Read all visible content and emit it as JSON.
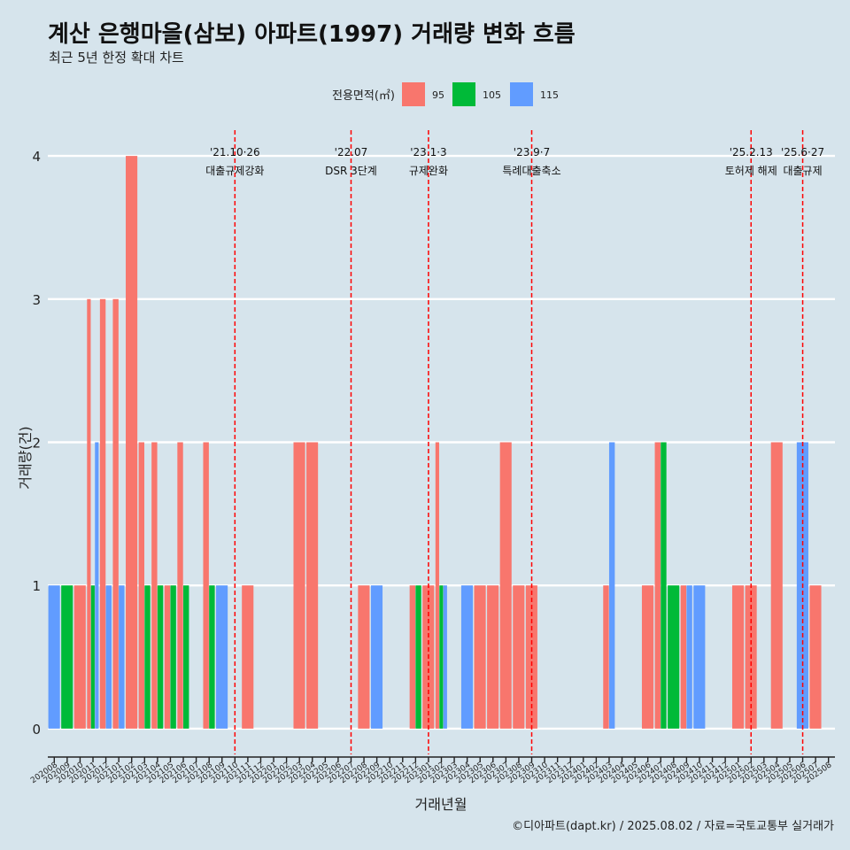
{
  "chart_data": {
    "type": "bar",
    "title": "계산 은행마을(삼보) 아파트(1997) 거래량 변화 흐름",
    "subtitle": "최근 5년 한정 확대 차트",
    "xlabel": "거래년월",
    "ylabel": "거래량(건)",
    "ylim": [
      -0.18,
      4.18
    ],
    "yticks": [
      0,
      1,
      2,
      3,
      4
    ],
    "legend": {
      "title": "전용면적(㎡)",
      "position": "top",
      "entries": [
        {
          "name": "95",
          "color": "#f8766d"
        },
        {
          "name": "105",
          "color": "#00ba38"
        },
        {
          "name": "115",
          "color": "#619cff"
        }
      ]
    },
    "caption": "©디아파트(dapt.kr) / 2025.08.02 / 자료=국토교통부 실거래가",
    "categories": [
      "202008",
      "202009",
      "202010",
      "202011",
      "202012",
      "202101",
      "202102",
      "202103",
      "202104",
      "202105",
      "202106",
      "202107",
      "202108",
      "202109",
      "202110",
      "202111",
      "202112",
      "202201",
      "202202",
      "202203",
      "202204",
      "202205",
      "202206",
      "202207",
      "202208",
      "202209",
      "202210",
      "202211",
      "202212",
      "202301",
      "202302",
      "202303",
      "202304",
      "202305",
      "202306",
      "202307",
      "202308",
      "202309",
      "202310",
      "202311",
      "202312",
      "202401",
      "202402",
      "202403",
      "202404",
      "202405",
      "202406",
      "202407",
      "202408",
      "202409",
      "202410",
      "202411",
      "202412",
      "202501",
      "202502",
      "202503",
      "202504",
      "202505",
      "202506",
      "202507",
      "202508"
    ],
    "series": [
      {
        "name": "95",
        "color": "#f8766d",
        "values": [
          0,
          0,
          1,
          3,
          3,
          3,
          4,
          2,
          2,
          1,
          2,
          0,
          2,
          0,
          0,
          1,
          0,
          0,
          0,
          2,
          2,
          0,
          0,
          0,
          1,
          0,
          0,
          0,
          1,
          1,
          2,
          0,
          0,
          1,
          1,
          2,
          1,
          1,
          0,
          0,
          0,
          0,
          0,
          1,
          0,
          0,
          1,
          2,
          0,
          1,
          0,
          0,
          0,
          1,
          1,
          0,
          2,
          0,
          0,
          1,
          0
        ]
      },
      {
        "name": "105",
        "color": "#00ba38",
        "values": [
          0,
          1,
          0,
          1,
          0,
          0,
          0,
          1,
          1,
          1,
          1,
          0,
          1,
          0,
          0,
          0,
          0,
          0,
          0,
          0,
          0,
          0,
          0,
          0,
          0,
          0,
          0,
          0,
          1,
          0,
          1,
          0,
          0,
          0,
          0,
          0,
          0,
          0,
          0,
          0,
          0,
          0,
          0,
          0,
          0,
          0,
          0,
          2,
          1,
          0,
          0,
          0,
          0,
          0,
          0,
          0,
          0,
          0,
          0,
          0,
          0
        ]
      },
      {
        "name": "115",
        "color": "#619cff",
        "values": [
          1,
          0,
          0,
          2,
          1,
          1,
          0,
          0,
          0,
          0,
          0,
          0,
          0,
          1,
          0,
          0,
          0,
          0,
          0,
          0,
          0,
          0,
          0,
          0,
          0,
          1,
          0,
          0,
          0,
          0,
          1,
          0,
          1,
          0,
          0,
          0,
          0,
          0,
          0,
          0,
          0,
          0,
          0,
          2,
          0,
          0,
          0,
          0,
          0,
          1,
          1,
          0,
          0,
          0,
          0,
          0,
          0,
          0,
          2,
          0,
          0
        ]
      }
    ],
    "annotations": [
      {
        "x": "202110",
        "date": "'21.10·26",
        "label": "대출규제강화"
      },
      {
        "x": "202207",
        "date": "'22.07",
        "label": "DSR 3단계"
      },
      {
        "x": "202301",
        "date": "'23.1·3",
        "label": "규제완화"
      },
      {
        "x": "202309",
        "date": "'23.9·7",
        "label": "특례대출축소"
      },
      {
        "x": "202502",
        "date": "'25.2.13",
        "label": "토허제 해제"
      },
      {
        "x": "202506",
        "date": "'25.6·27",
        "label": "대출규제"
      }
    ]
  }
}
